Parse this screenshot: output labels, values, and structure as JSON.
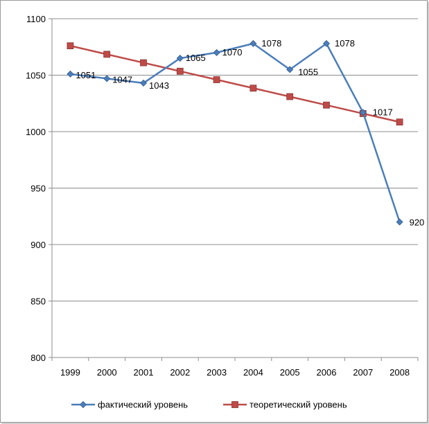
{
  "chart_data": {
    "type": "line",
    "categories": [
      "1999",
      "2000",
      "2001",
      "2002",
      "2003",
      "2004",
      "2005",
      "2006",
      "2007",
      "2008"
    ],
    "ylim": [
      800,
      1100
    ],
    "yticks": [
      800,
      850,
      900,
      950,
      1000,
      1050,
      1100
    ],
    "grid": true,
    "legend_position": "bottom",
    "title": "",
    "xlabel": "",
    "ylabel": "",
    "series": [
      {
        "name": "фактический уровень",
        "color": "#4a7ebb",
        "marker": "diamond",
        "values": [
          1051,
          1047,
          1043,
          1065,
          1070,
          1078,
          1055,
          1078,
          1017,
          920
        ],
        "labels": [
          "1051",
          "1047",
          "1043",
          "1065",
          "1070",
          "1078",
          "1055",
          "1078",
          "1017",
          "920"
        ]
      },
      {
        "name": "теоретический уровень",
        "color": "#be4b48",
        "marker": "square",
        "values": [
          1076,
          1068.5,
          1061,
          1053.5,
          1046,
          1038.5,
          1031,
          1023.5,
          1016,
          1008.5
        ]
      }
    ]
  }
}
